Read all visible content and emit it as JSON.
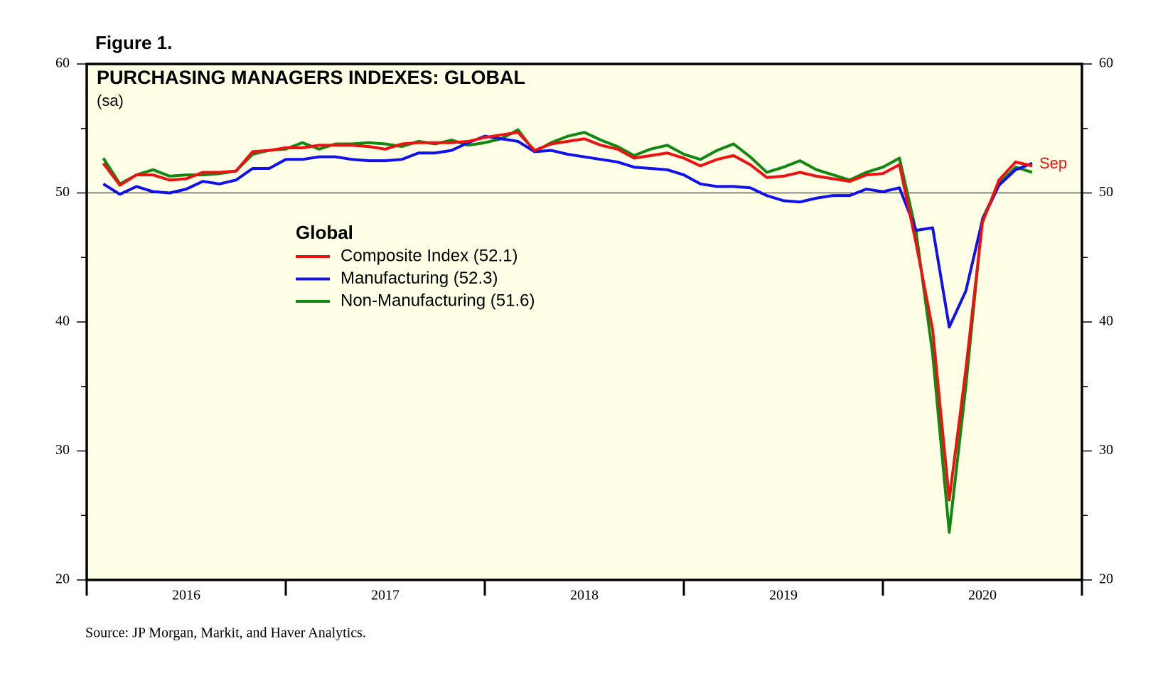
{
  "figure_label": "Figure 1.",
  "source": "Source: JP Morgan, Markit, and Haver Analytics.",
  "chart_data": {
    "type": "line",
    "title": "PURCHASING MANAGERS INDEXES: GLOBAL",
    "subtitle": "(sa)",
    "legend_title": "Global",
    "annotation": "Sep",
    "categories": [
      null,
      null,
      null,
      null,
      null,
      "2016",
      null,
      null,
      null,
      null,
      null,
      null,
      null,
      null,
      null,
      null,
      null,
      "2017",
      null,
      null,
      null,
      null,
      null,
      null,
      null,
      null,
      null,
      null,
      null,
      "2018",
      null,
      null,
      null,
      null,
      null,
      null,
      null,
      null,
      null,
      null,
      null,
      "2019",
      null,
      null,
      null,
      null,
      null,
      null,
      null,
      null,
      null,
      null,
      null,
      "2020",
      null,
      null,
      null
    ],
    "series": [
      {
        "name": "Composite Index (52.1)",
        "color": "#ee1111",
        "values": [
          52.3,
          50.6,
          51.4,
          51.4,
          51.0,
          51.1,
          51.6,
          51.6,
          51.7,
          53.2,
          53.3,
          53.5,
          53.5,
          53.7,
          53.7,
          53.7,
          53.6,
          53.4,
          53.8,
          53.9,
          53.9,
          53.9,
          54.0,
          54.3,
          54.5,
          54.7,
          53.3,
          53.8,
          54.0,
          54.2,
          53.7,
          53.4,
          52.7,
          52.9,
          53.1,
          52.7,
          52.1,
          52.6,
          52.9,
          52.2,
          51.2,
          51.3,
          51.6,
          51.3,
          51.1,
          50.9,
          51.4,
          51.5,
          52.2,
          46.1,
          39.4,
          26.2,
          36.3,
          47.7,
          51.0,
          52.4,
          52.1
        ]
      },
      {
        "name": "Manufacturing (52.3)",
        "color": "#1111ee",
        "values": [
          50.7,
          49.9,
          50.5,
          50.1,
          50.0,
          50.3,
          50.9,
          50.7,
          51.0,
          51.9,
          51.9,
          52.6,
          52.6,
          52.8,
          52.8,
          52.6,
          52.5,
          52.5,
          52.6,
          53.1,
          53.1,
          53.3,
          53.9,
          54.4,
          54.2,
          54.0,
          53.2,
          53.3,
          53.0,
          52.8,
          52.6,
          52.4,
          52.0,
          51.9,
          51.8,
          51.4,
          50.7,
          50.5,
          50.5,
          50.4,
          49.8,
          49.4,
          49.3,
          49.6,
          49.8,
          49.8,
          50.3,
          50.1,
          50.4,
          47.1,
          47.3,
          39.6,
          42.4,
          47.9,
          50.6,
          51.8,
          52.3
        ]
      },
      {
        "name": "Non-Manufacturing (51.6)",
        "color": "#118811",
        "values": [
          52.7,
          50.7,
          51.4,
          51.8,
          51.3,
          51.4,
          51.4,
          51.5,
          51.7,
          53.0,
          53.3,
          53.4,
          53.9,
          53.4,
          53.8,
          53.8,
          53.9,
          53.8,
          53.6,
          54.0,
          53.8,
          54.1,
          53.7,
          53.9,
          54.2,
          54.9,
          53.2,
          53.9,
          54.4,
          54.7,
          54.1,
          53.6,
          52.9,
          53.4,
          53.7,
          53.0,
          52.6,
          53.3,
          53.8,
          52.8,
          51.6,
          52.0,
          52.5,
          51.8,
          51.4,
          51.0,
          51.6,
          52.0,
          52.7,
          47.0,
          37.5,
          23.7,
          35.0,
          48.0,
          50.7,
          52.0,
          51.6
        ]
      }
    ],
    "ylim": [
      20,
      60
    ],
    "yticks": [
      20,
      30,
      40,
      50,
      60
    ],
    "yminorticks": [
      25,
      35,
      45,
      55
    ],
    "reference_line": 50,
    "plot_background": "#ffffe6"
  }
}
